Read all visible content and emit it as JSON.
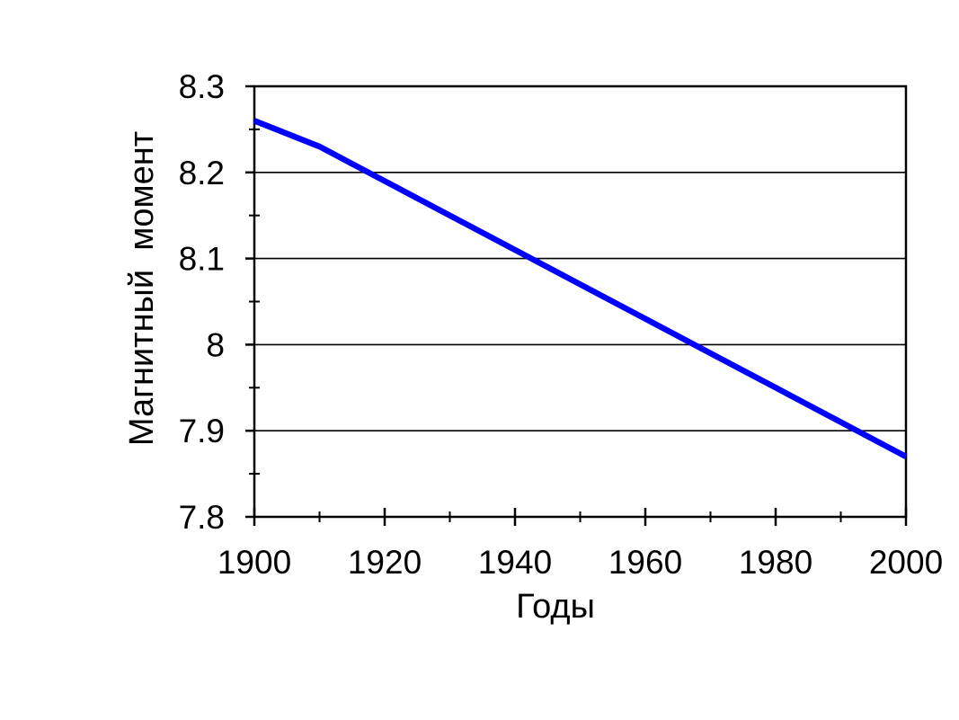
{
  "chart_data": {
    "type": "line",
    "title": "",
    "xlabel": "Годы",
    "ylabel": "Магнитный  момент",
    "x": [
      1900,
      1910,
      1920,
      1930,
      1940,
      1950,
      1960,
      1970,
      1980,
      1990,
      2000
    ],
    "values": [
      8.26,
      8.23,
      8.19,
      8.15,
      8.11,
      8.07,
      8.03,
      7.99,
      7.95,
      7.91,
      7.87
    ],
    "xlim": [
      1900,
      2000
    ],
    "ylim": [
      7.8,
      8.3
    ],
    "x_ticks": [
      {
        "v": 1900,
        "label": "1900"
      },
      {
        "v": 1920,
        "label": "1920"
      },
      {
        "v": 1940,
        "label": "1940"
      },
      {
        "v": 1960,
        "label": "1960"
      },
      {
        "v": 1980,
        "label": "1980"
      },
      {
        "v": 2000,
        "label": "2000"
      }
    ],
    "x_minor_ticks": [
      1910,
      1930,
      1950,
      1970,
      1990
    ],
    "y_ticks": [
      {
        "v": 7.8,
        "label": "7.8"
      },
      {
        "v": 7.9,
        "label": "7.9"
      },
      {
        "v": 8,
        "label": "8"
      },
      {
        "v": 8.1,
        "label": "8.1"
      },
      {
        "v": 8.2,
        "label": "8.2"
      },
      {
        "v": 8.3,
        "label": "8.3"
      }
    ],
    "y_minor_ticks": [
      7.85,
      7.95,
      8.05,
      8.15,
      8.25
    ],
    "gridlines": "horizontal-at-major-y",
    "legend": "none",
    "frame": true,
    "colors": {
      "line": "#0000FF",
      "axis": "#000000",
      "grid": "#000000",
      "background": "#FFFFFF",
      "text": "#000000"
    }
  }
}
